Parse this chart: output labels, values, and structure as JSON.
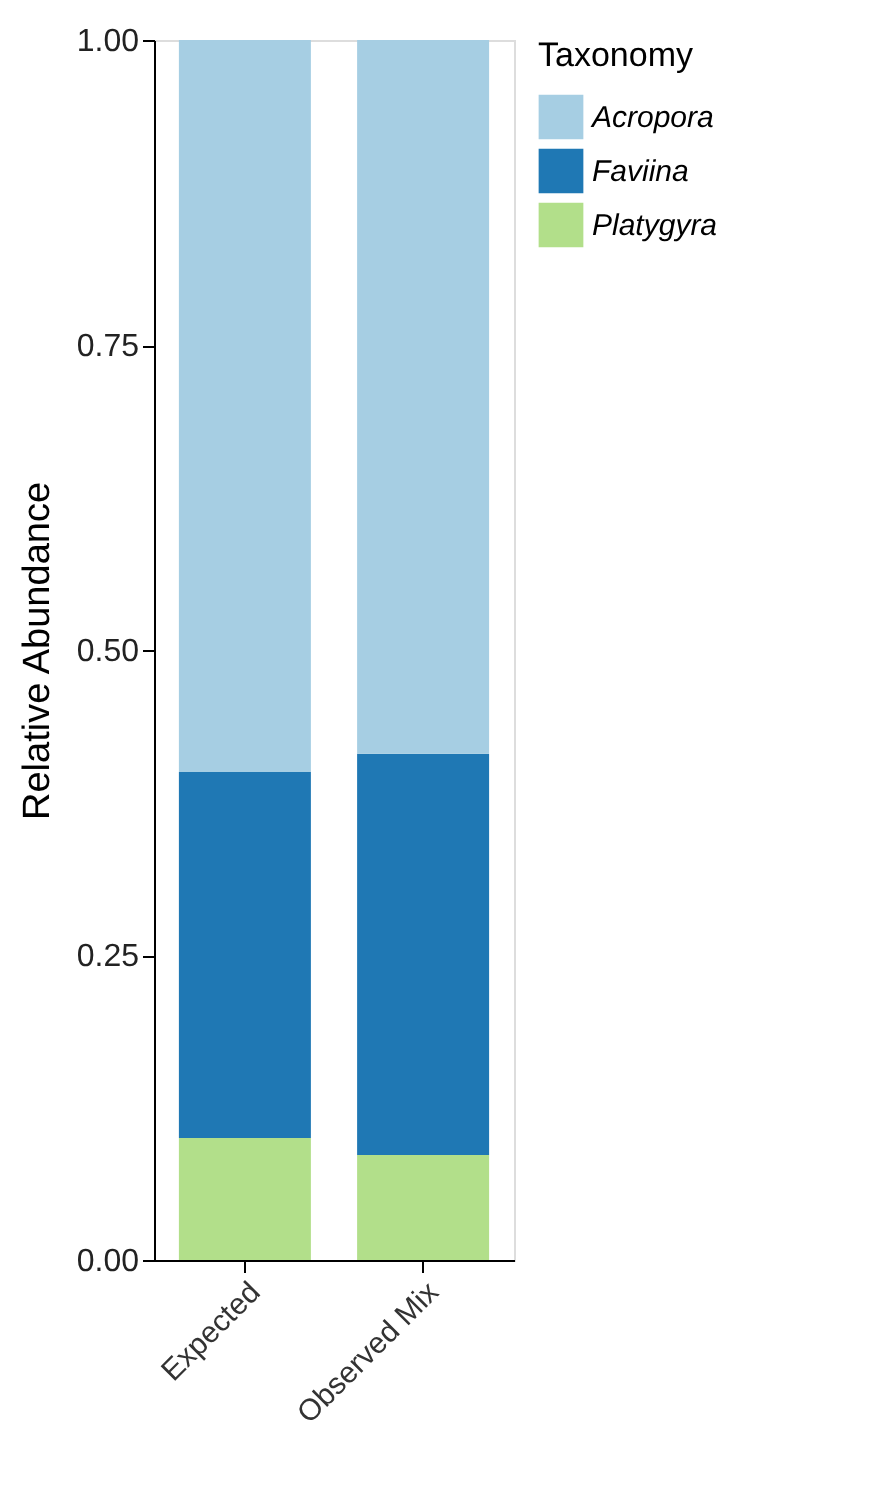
{
  "chart_data": {
    "type": "bar",
    "stacked": true,
    "ylabel": "Relative Abundance",
    "legend_title": "Taxonomy",
    "legend": "right",
    "categories": [
      "Expected",
      "Observed Mix"
    ],
    "series": [
      {
        "name": "Platygyra",
        "color": "#b2df8a",
        "values": [
          0.1,
          0.086
        ]
      },
      {
        "name": "Faviina",
        "color": "#1f78b4",
        "values": [
          0.3,
          0.329
        ]
      },
      {
        "name": "Acropora",
        "color": "#a6cee3",
        "values": [
          0.6,
          0.585
        ]
      }
    ],
    "ylim": [
      0,
      1.0
    ],
    "yticks": [
      {
        "value": 0,
        "label": "0.00"
      },
      {
        "value": 0.25,
        "label": "0.25"
      },
      {
        "value": 0.5,
        "label": "0.50"
      },
      {
        "value": 0.75,
        "label": "0.75"
      },
      {
        "value": 1.0,
        "label": "1.00"
      }
    ],
    "grid": false
  }
}
